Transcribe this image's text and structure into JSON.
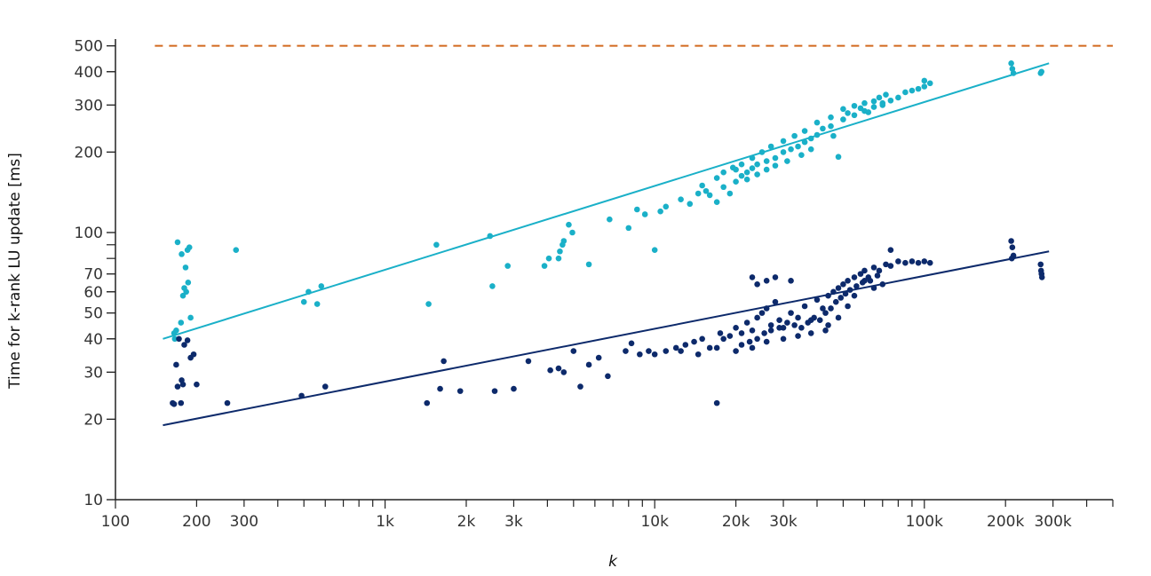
{
  "chart_data": {
    "type": "scatter",
    "title": "",
    "xlabel": "k",
    "ylabel": "Time for k-rank LU update [ms]",
    "x_scale": "log",
    "y_scale": "log",
    "xlim": [
      100,
      500000
    ],
    "ylim": [
      10,
      530
    ],
    "grid": false,
    "x_ticks": [
      {
        "value": 100,
        "label": "100"
      },
      {
        "value": 200,
        "label": "200"
      },
      {
        "value": 300,
        "label": "300"
      },
      {
        "value": 1000,
        "label": "1k"
      },
      {
        "value": 2000,
        "label": "2k"
      },
      {
        "value": 3000,
        "label": "3k"
      },
      {
        "value": 10000,
        "label": "10k"
      },
      {
        "value": 20000,
        "label": "20k"
      },
      {
        "value": 30000,
        "label": "30k"
      },
      {
        "value": 100000,
        "label": "100k"
      },
      {
        "value": 200000,
        "label": "200k"
      },
      {
        "value": 300000,
        "label": "300k"
      }
    ],
    "y_ticks": [
      {
        "value": 10,
        "label": "10"
      },
      {
        "value": 20,
        "label": "20"
      },
      {
        "value": 30,
        "label": "30"
      },
      {
        "value": 40,
        "label": "40"
      },
      {
        "value": 50,
        "label": "50"
      },
      {
        "value": 60,
        "label": "60"
      },
      {
        "value": 70,
        "label": "70"
      },
      {
        "value": 100,
        "label": "100"
      },
      {
        "value": 200,
        "label": "200"
      },
      {
        "value": 300,
        "label": "300"
      },
      {
        "value": 400,
        "label": "400"
      },
      {
        "value": 500,
        "label": "500"
      }
    ],
    "reference_line": {
      "y": 500,
      "color": "#d2691e",
      "style": "dashed",
      "x_range": [
        140,
        500000
      ]
    },
    "series": [
      {
        "color": "#1ab0c8",
        "points": [
          [
            165,
            42
          ],
          [
            166,
            40
          ],
          [
            168,
            43
          ],
          [
            170,
            92
          ],
          [
            175,
            46
          ],
          [
            176,
            83
          ],
          [
            180,
            62
          ],
          [
            182,
            74
          ],
          [
            185,
            86
          ],
          [
            186,
            65
          ],
          [
            188,
            88
          ],
          [
            190,
            48
          ],
          [
            178,
            58
          ],
          [
            183,
            60
          ],
          [
            280,
            86
          ],
          [
            500,
            55
          ],
          [
            520,
            60
          ],
          [
            580,
            63
          ],
          [
            560,
            54
          ],
          [
            1450,
            54
          ],
          [
            1550,
            90
          ],
          [
            2450,
            97
          ],
          [
            2500,
            63
          ],
          [
            2850,
            75
          ],
          [
            3900,
            75
          ],
          [
            4050,
            80
          ],
          [
            4400,
            80
          ],
          [
            4450,
            85
          ],
          [
            4550,
            90
          ],
          [
            4600,
            93
          ],
          [
            4800,
            107
          ],
          [
            4950,
            100
          ],
          [
            5700,
            76
          ],
          [
            6800,
            112
          ],
          [
            8000,
            104
          ],
          [
            8600,
            122
          ],
          [
            9200,
            117
          ],
          [
            10000,
            86
          ],
          [
            10500,
            120
          ],
          [
            11000,
            125
          ],
          [
            12500,
            133
          ],
          [
            13500,
            128
          ],
          [
            14500,
            140
          ],
          [
            15500,
            143
          ],
          [
            16000,
            138
          ],
          [
            17000,
            130
          ],
          [
            18000,
            148
          ],
          [
            19000,
            140
          ],
          [
            20000,
            155
          ],
          [
            21000,
            163
          ],
          [
            22000,
            168
          ],
          [
            23000,
            174
          ],
          [
            24000,
            180
          ],
          [
            26000,
            185
          ],
          [
            28000,
            190
          ],
          [
            30000,
            200
          ],
          [
            32000,
            205
          ],
          [
            34000,
            210
          ],
          [
            36000,
            218
          ],
          [
            38000,
            225
          ],
          [
            40000,
            232
          ],
          [
            45000,
            250
          ],
          [
            50000,
            265
          ],
          [
            55000,
            275
          ],
          [
            60000,
            285
          ],
          [
            65000,
            295
          ],
          [
            70000,
            305
          ],
          [
            75000,
            312
          ],
          [
            80000,
            320
          ],
          [
            90000,
            340
          ],
          [
            95000,
            345
          ],
          [
            100000,
            352
          ],
          [
            105000,
            362
          ],
          [
            18000,
            168
          ],
          [
            19500,
            175
          ],
          [
            21000,
            180
          ],
          [
            23000,
            190
          ],
          [
            25000,
            200
          ],
          [
            27000,
            210
          ],
          [
            30000,
            220
          ],
          [
            33000,
            230
          ],
          [
            36000,
            240
          ],
          [
            40000,
            258
          ],
          [
            45000,
            270
          ],
          [
            50000,
            290
          ],
          [
            55000,
            298
          ],
          [
            60000,
            305
          ],
          [
            65000,
            310
          ],
          [
            70000,
            300
          ],
          [
            15000,
            150
          ],
          [
            17000,
            160
          ],
          [
            20000,
            172
          ],
          [
            22000,
            158
          ],
          [
            24000,
            165
          ],
          [
            26000,
            172
          ],
          [
            28000,
            178
          ],
          [
            31000,
            185
          ],
          [
            35000,
            195
          ],
          [
            38000,
            205
          ],
          [
            42000,
            245
          ],
          [
            48000,
            192
          ],
          [
            46000,
            230
          ],
          [
            52000,
            280
          ],
          [
            58000,
            292
          ],
          [
            62000,
            282
          ],
          [
            68000,
            320
          ],
          [
            72000,
            328
          ],
          [
            85000,
            335
          ],
          [
            100000,
            370
          ],
          [
            210000,
            430
          ],
          [
            212000,
            410
          ],
          [
            214000,
            395
          ],
          [
            270000,
            395
          ],
          [
            272000,
            400
          ]
        ]
      },
      {
        "color": "#0d2a6b",
        "points": [
          [
            163,
            23
          ],
          [
            165,
            22.8
          ],
          [
            168,
            32
          ],
          [
            170,
            26.5
          ],
          [
            172,
            40
          ],
          [
            175,
            23
          ],
          [
            176,
            28
          ],
          [
            178,
            27
          ],
          [
            180,
            38
          ],
          [
            185,
            39.5
          ],
          [
            190,
            34
          ],
          [
            195,
            35
          ],
          [
            200,
            27
          ],
          [
            260,
            23
          ],
          [
            490,
            24.5
          ],
          [
            600,
            26.5
          ],
          [
            1430,
            23
          ],
          [
            1600,
            26
          ],
          [
            1650,
            33
          ],
          [
            1900,
            25.5
          ],
          [
            2550,
            25.5
          ],
          [
            3000,
            26
          ],
          [
            3400,
            33
          ],
          [
            4100,
            30.5
          ],
          [
            4400,
            31
          ],
          [
            4600,
            30
          ],
          [
            5000,
            36
          ],
          [
            5300,
            26.5
          ],
          [
            5700,
            32
          ],
          [
            6200,
            34
          ],
          [
            6700,
            29
          ],
          [
            7800,
            36
          ],
          [
            8200,
            38.5
          ],
          [
            8800,
            35
          ],
          [
            9500,
            36
          ],
          [
            10000,
            35
          ],
          [
            11000,
            36
          ],
          [
            12000,
            37
          ],
          [
            13000,
            38
          ],
          [
            14000,
            39
          ],
          [
            15000,
            40
          ],
          [
            16000,
            37
          ],
          [
            17000,
            23
          ],
          [
            17500,
            42
          ],
          [
            18000,
            40
          ],
          [
            19000,
            41
          ],
          [
            20000,
            44
          ],
          [
            21000,
            42
          ],
          [
            22000,
            46
          ],
          [
            23000,
            43
          ],
          [
            24000,
            48
          ],
          [
            25000,
            50
          ],
          [
            26000,
            52
          ],
          [
            27000,
            45
          ],
          [
            28000,
            55
          ],
          [
            29000,
            47
          ],
          [
            30000,
            44
          ],
          [
            32000,
            50
          ],
          [
            34000,
            48
          ],
          [
            36000,
            53
          ],
          [
            38000,
            47
          ],
          [
            40000,
            56
          ],
          [
            42000,
            52
          ],
          [
            44000,
            58
          ],
          [
            46000,
            60
          ],
          [
            48000,
            62
          ],
          [
            50000,
            64
          ],
          [
            52000,
            66
          ],
          [
            55000,
            68
          ],
          [
            58000,
            70
          ],
          [
            60000,
            72
          ],
          [
            62000,
            68
          ],
          [
            65000,
            74
          ],
          [
            68000,
            72
          ],
          [
            72000,
            76
          ],
          [
            75000,
            75
          ],
          [
            80000,
            78
          ],
          [
            85000,
            77
          ],
          [
            90000,
            78
          ],
          [
            95000,
            77
          ],
          [
            100000,
            78
          ],
          [
            105000,
            77
          ],
          [
            21000,
            38
          ],
          [
            22500,
            39
          ],
          [
            24000,
            40
          ],
          [
            25500,
            42
          ],
          [
            27000,
            43
          ],
          [
            29000,
            44
          ],
          [
            31000,
            46
          ],
          [
            33000,
            45
          ],
          [
            35000,
            44
          ],
          [
            37000,
            46
          ],
          [
            39000,
            48
          ],
          [
            41000,
            47
          ],
          [
            43000,
            50
          ],
          [
            45000,
            52
          ],
          [
            47000,
            55
          ],
          [
            49000,
            57
          ],
          [
            51000,
            59
          ],
          [
            53000,
            61
          ],
          [
            56000,
            63
          ],
          [
            59000,
            65
          ],
          [
            63000,
            66
          ],
          [
            67000,
            69
          ],
          [
            70000,
            64
          ],
          [
            43000,
            43
          ],
          [
            38000,
            42
          ],
          [
            34000,
            41
          ],
          [
            30000,
            40
          ],
          [
            26000,
            39
          ],
          [
            23000,
            37
          ],
          [
            20000,
            36
          ],
          [
            17000,
            37
          ],
          [
            14500,
            35
          ],
          [
            12500,
            36
          ],
          [
            24000,
            64
          ],
          [
            23000,
            68
          ],
          [
            26000,
            66
          ],
          [
            28000,
            68
          ],
          [
            32000,
            66
          ],
          [
            75000,
            86
          ],
          [
            60000,
            66
          ],
          [
            55000,
            58
          ],
          [
            65000,
            62
          ],
          [
            52000,
            53
          ],
          [
            48000,
            48
          ],
          [
            44000,
            45
          ],
          [
            210000,
            93
          ],
          [
            212000,
            88
          ],
          [
            214000,
            82
          ],
          [
            211000,
            80
          ],
          [
            270000,
            76
          ],
          [
            271000,
            72
          ],
          [
            272000,
            70
          ],
          [
            273000,
            68
          ]
        ]
      }
    ],
    "fit_lines": [
      {
        "color": "#1ab0c8",
        "from": [
          150,
          40
        ],
        "to": [
          290000,
          430
        ]
      },
      {
        "color": "#0d2a6b",
        "from": [
          150,
          19
        ],
        "to": [
          290000,
          85
        ]
      }
    ]
  }
}
